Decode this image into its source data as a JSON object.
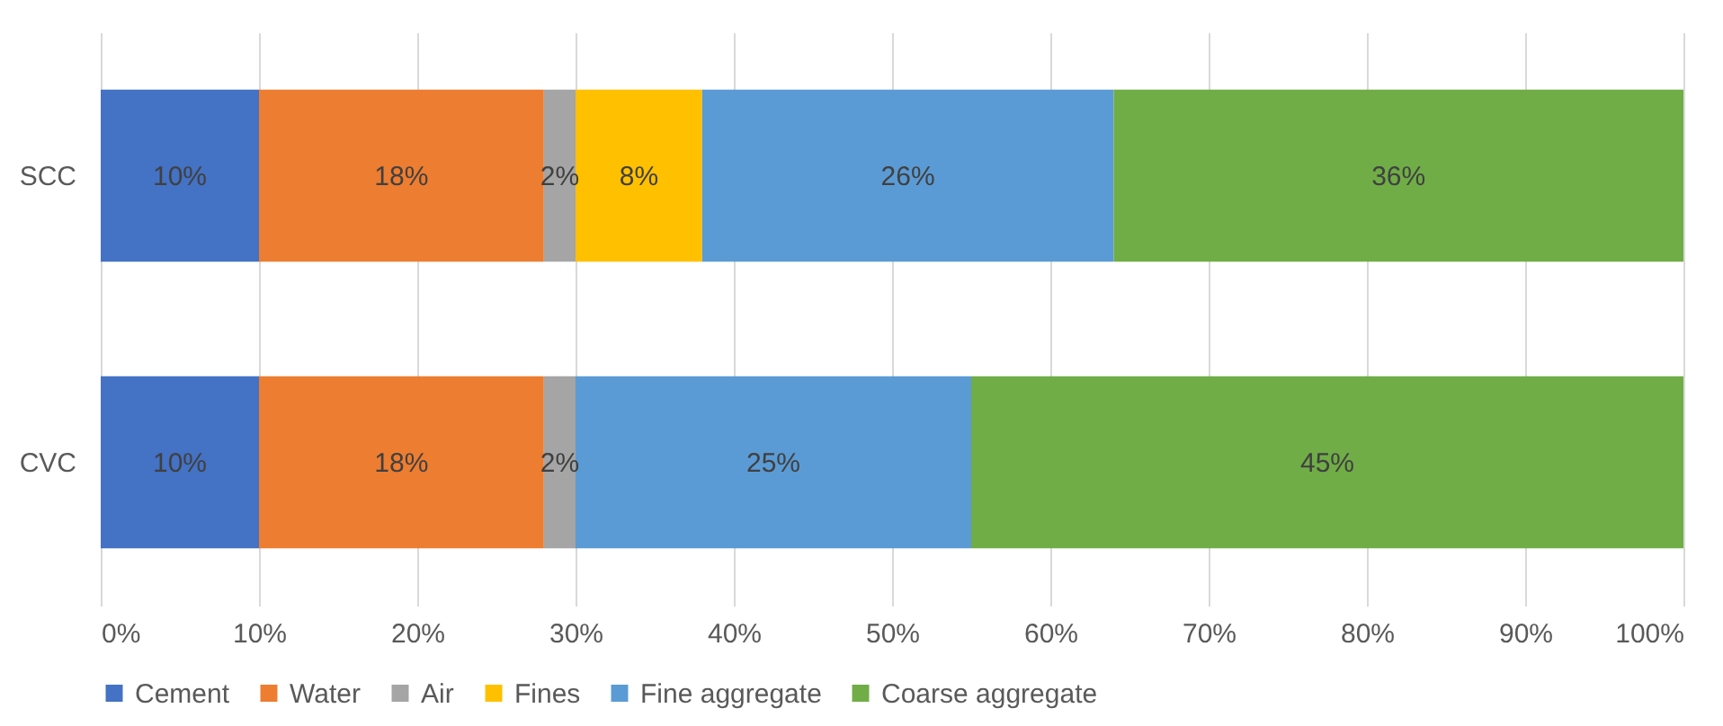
{
  "chart_data": {
    "type": "bar",
    "orientation": "horizontal",
    "stacked": true,
    "categories": [
      "SCC",
      "CVC"
    ],
    "series": [
      {
        "name": "Cement",
        "color": "#4472c4",
        "values": [
          10,
          10
        ],
        "value_labels": [
          "10%",
          "10%"
        ]
      },
      {
        "name": "Water",
        "color": "#ed7d31",
        "values": [
          18,
          18
        ],
        "value_labels": [
          "18%",
          "18%"
        ]
      },
      {
        "name": "Air",
        "color": "#a5a5a5",
        "values": [
          2,
          2
        ],
        "value_labels": [
          "2%",
          "2%"
        ]
      },
      {
        "name": "Fines",
        "color": "#ffc000",
        "values": [
          8,
          null
        ],
        "value_labels": [
          "8%",
          null
        ]
      },
      {
        "name": "Fine aggregate",
        "color": "#5b9bd5",
        "values": [
          26,
          25
        ],
        "value_labels": [
          "26%",
          "25%"
        ]
      },
      {
        "name": "Coarse aggregate",
        "color": "#70ad47",
        "values": [
          36,
          45
        ],
        "value_labels": [
          "36%",
          "45%"
        ]
      }
    ],
    "xlim": [
      0,
      100
    ],
    "xticks": [
      {
        "value": 0,
        "label": "0%"
      },
      {
        "value": 10,
        "label": "10%"
      },
      {
        "value": 20,
        "label": "20%"
      },
      {
        "value": 30,
        "label": "30%"
      },
      {
        "value": 40,
        "label": "40%"
      },
      {
        "value": 50,
        "label": "50%"
      },
      {
        "value": 60,
        "label": "60%"
      },
      {
        "value": 70,
        "label": "70%"
      },
      {
        "value": 80,
        "label": "80%"
      },
      {
        "value": 90,
        "label": "90%"
      },
      {
        "value": 100,
        "label": "100%"
      }
    ],
    "grid": "x",
    "legend": "bottom"
  }
}
